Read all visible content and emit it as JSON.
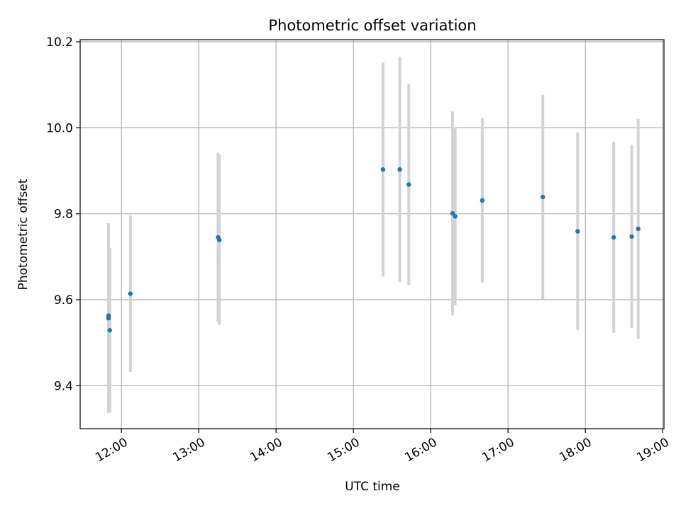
{
  "chart_data": {
    "type": "scatter",
    "title": "Photometric offset variation",
    "xlabel": "UTC time",
    "ylabel": "Photometric offset",
    "x_ticks": [
      "12:00",
      "13:00",
      "14:00",
      "15:00",
      "16:00",
      "17:00",
      "18:00",
      "19:00"
    ],
    "y_ticks": [
      "9.4",
      "9.6",
      "9.8",
      "10.0",
      "10.2"
    ],
    "xlim": [
      "11:28",
      "19:01"
    ],
    "ylim": [
      9.3,
      10.205
    ],
    "grid": true,
    "marker_color": "#1f77b4",
    "errorbar_color": "#d3d3d3",
    "points": [
      {
        "time": "11:50",
        "y": 9.563,
        "err": 0.207
      },
      {
        "time": "11:50",
        "y": 9.557,
        "err": 0.221
      },
      {
        "time": "11:51",
        "y": 9.529,
        "err": 0.191
      },
      {
        "time": "12:07",
        "y": 9.614,
        "err": 0.182
      },
      {
        "time": "13:15",
        "y": 9.745,
        "err": 0.197
      },
      {
        "time": "13:16",
        "y": 9.739,
        "err": 0.198
      },
      {
        "time": "15:23",
        "y": 9.903,
        "err": 0.249
      },
      {
        "time": "15:36",
        "y": 9.903,
        "err": 0.262
      },
      {
        "time": "15:43",
        "y": 9.868,
        "err": 0.234
      },
      {
        "time": "16:17",
        "y": 9.801,
        "err": 0.237
      },
      {
        "time": "16:19",
        "y": 9.794,
        "err": 0.207
      },
      {
        "time": "16:40",
        "y": 9.831,
        "err": 0.191
      },
      {
        "time": "17:27",
        "y": 9.839,
        "err": 0.238
      },
      {
        "time": "17:54",
        "y": 9.759,
        "err": 0.23
      },
      {
        "time": "18:22",
        "y": 9.745,
        "err": 0.222
      },
      {
        "time": "18:36",
        "y": 9.747,
        "err": 0.213
      },
      {
        "time": "18:41",
        "y": 9.765,
        "err": 0.256
      }
    ]
  }
}
